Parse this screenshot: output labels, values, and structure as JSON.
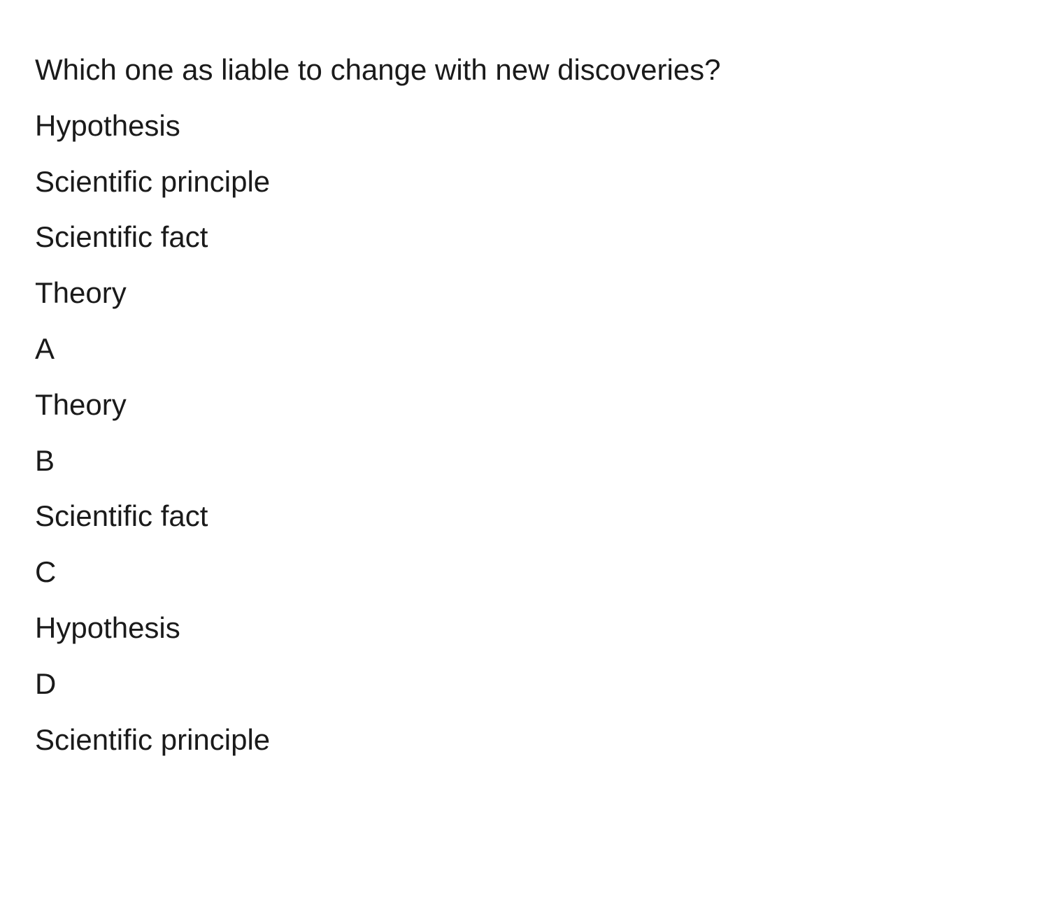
{
  "question": "Which one as liable to change with new discoveries?",
  "items": [
    "Hypothesis",
    "Scientific principle",
    "Scientific fact",
    "Theory"
  ],
  "options": [
    {
      "letter": "A",
      "text": "Theory"
    },
    {
      "letter": "B",
      "text": "Scientific fact"
    },
    {
      "letter": "C",
      "text": "Hypothesis"
    },
    {
      "letter": "D",
      "text": "Scientific principle"
    }
  ],
  "text_color": "#1a1a1a",
  "background_color": "#ffffff",
  "font_size": 42
}
